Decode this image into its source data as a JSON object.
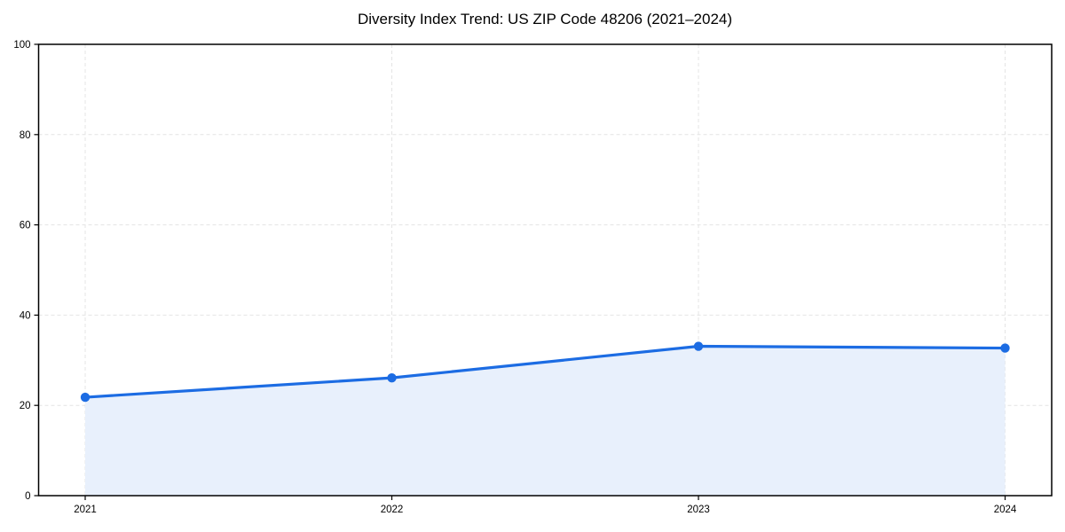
{
  "chart_data": {
    "type": "line",
    "title": "Diversity Index Trend: US ZIP Code 48206 (2021–2024)",
    "categories": [
      "2021",
      "2022",
      "2023",
      "2024"
    ],
    "values": [
      21.8,
      26.1,
      33.1,
      32.7
    ],
    "xlabel": "",
    "ylabel": "",
    "ylim": [
      0,
      100
    ],
    "yticks": [
      0,
      20,
      40,
      60,
      80,
      100
    ],
    "grid": true,
    "grid_style": "dashed",
    "legend_position": "none",
    "markers": true,
    "area_fill": true,
    "colors": {
      "line": "#1c6ce3",
      "marker": "#1c6ce3",
      "area": "#e8f0fc",
      "grid": "#e4e4e4",
      "axis": "#000000",
      "text": "#000000",
      "background": "#ffffff"
    }
  }
}
